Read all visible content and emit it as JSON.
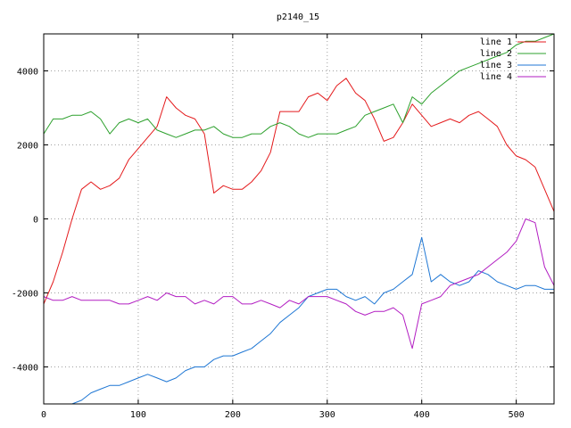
{
  "chart_data": {
    "type": "line",
    "title": "p2140_15",
    "xlabel": "",
    "ylabel": "",
    "xlim": [
      0,
      540
    ],
    "ylim": [
      -5000,
      5000
    ],
    "x_ticks": [
      0,
      100,
      200,
      300,
      400,
      500
    ],
    "y_ticks": [
      -4000,
      -2000,
      0,
      2000,
      4000
    ],
    "grid": true,
    "legend_position": "top-right",
    "x": [
      0,
      10,
      20,
      30,
      40,
      50,
      60,
      70,
      80,
      90,
      100,
      110,
      120,
      130,
      140,
      150,
      160,
      170,
      180,
      190,
      200,
      210,
      220,
      230,
      240,
      250,
      260,
      270,
      280,
      290,
      300,
      310,
      320,
      330,
      340,
      350,
      360,
      370,
      380,
      390,
      400,
      410,
      420,
      430,
      440,
      450,
      460,
      470,
      480,
      490,
      500,
      510,
      520,
      530,
      540
    ],
    "series": [
      {
        "name": "line 1",
        "color": "#e41a1c",
        "values": [
          -2300,
          -1700,
          -900,
          0,
          800,
          1000,
          800,
          900,
          1100,
          1600,
          1900,
          2200,
          2500,
          3300,
          3000,
          2800,
          2700,
          2300,
          700,
          900,
          800,
          800,
          1000,
          1300,
          1800,
          2900,
          2900,
          2900,
          3300,
          3400,
          3200,
          3600,
          3800,
          3400,
          3200,
          2700,
          2100,
          2200,
          2600,
          3100,
          2800,
          2500,
          2600,
          2700,
          2600,
          2800,
          2900,
          2700,
          2500,
          2000,
          1700,
          1600,
          1400,
          800,
          200
        ]
      },
      {
        "name": "line 2",
        "color": "#2ca02c",
        "values": [
          2300,
          2700,
          2700,
          2800,
          2800,
          2900,
          2700,
          2300,
          2600,
          2700,
          2600,
          2700,
          2400,
          2300,
          2200,
          2300,
          2400,
          2400,
          2500,
          2300,
          2200,
          2200,
          2300,
          2300,
          2500,
          2600,
          2500,
          2300,
          2200,
          2300,
          2300,
          2300,
          2400,
          2500,
          2800,
          2900,
          3000,
          3100,
          2600,
          3300,
          3100,
          3400,
          3600,
          3800,
          4000,
          4100,
          4200,
          4300,
          4400,
          4500,
          4700,
          4800,
          4800,
          4900,
          5000
        ]
      },
      {
        "name": "line 3",
        "color": "#1f77d4",
        "values": [
          -5000,
          -5000,
          -5000,
          -5000,
          -4900,
          -4700,
          -4600,
          -4500,
          -4500,
          -4400,
          -4300,
          -4200,
          -4300,
          -4400,
          -4300,
          -4100,
          -4000,
          -4000,
          -3800,
          -3700,
          -3700,
          -3600,
          -3500,
          -3300,
          -3100,
          -2800,
          -2600,
          -2400,
          -2100,
          -2000,
          -1900,
          -1900,
          -2100,
          -2200,
          -2100,
          -2300,
          -2000,
          -1900,
          -1700,
          -1500,
          -500,
          -1700,
          -1500,
          -1700,
          -1800,
          -1700,
          -1400,
          -1500,
          -1700,
          -1800,
          -1900,
          -1800,
          -1800,
          -1900,
          -1900
        ]
      },
      {
        "name": "line 4",
        "color": "#b21dc2",
        "values": [
          -2100,
          -2200,
          -2200,
          -2100,
          -2200,
          -2200,
          -2200,
          -2200,
          -2300,
          -2300,
          -2200,
          -2100,
          -2200,
          -2000,
          -2100,
          -2100,
          -2300,
          -2200,
          -2300,
          -2100,
          -2100,
          -2300,
          -2300,
          -2200,
          -2300,
          -2400,
          -2200,
          -2300,
          -2100,
          -2100,
          -2100,
          -2200,
          -2300,
          -2500,
          -2600,
          -2500,
          -2500,
          -2400,
          -2600,
          -3500,
          -2300,
          -2200,
          -2100,
          -1800,
          -1700,
          -1600,
          -1500,
          -1300,
          -1100,
          -900,
          -600,
          0,
          -100,
          -1300,
          -1800
        ]
      }
    ]
  }
}
